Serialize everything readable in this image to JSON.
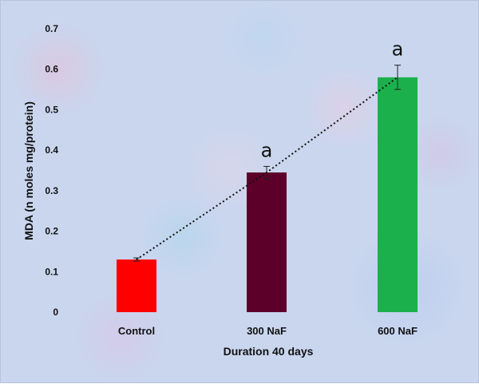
{
  "chart_data": {
    "type": "bar",
    "categories": [
      "Control",
      "300 NaF",
      "600 NaF"
    ],
    "values": [
      0.13,
      0.345,
      0.58
    ],
    "errors": [
      0.004,
      0.015,
      0.03
    ],
    "significance_labels": [
      "",
      "a",
      "a"
    ],
    "colors": [
      "#ff0000",
      "#5c0029",
      "#1cb04c"
    ],
    "xlabel": "Duration 40 days",
    "ylabel": "MDA (n moles mg/protein)",
    "ylim": [
      0,
      0.7
    ],
    "yticks": [
      0,
      0.1,
      0.2,
      0.3,
      0.4,
      0.5,
      0.6,
      0.7
    ],
    "trendline": "dotted line through bar tops",
    "grid": false,
    "legend": "none"
  }
}
